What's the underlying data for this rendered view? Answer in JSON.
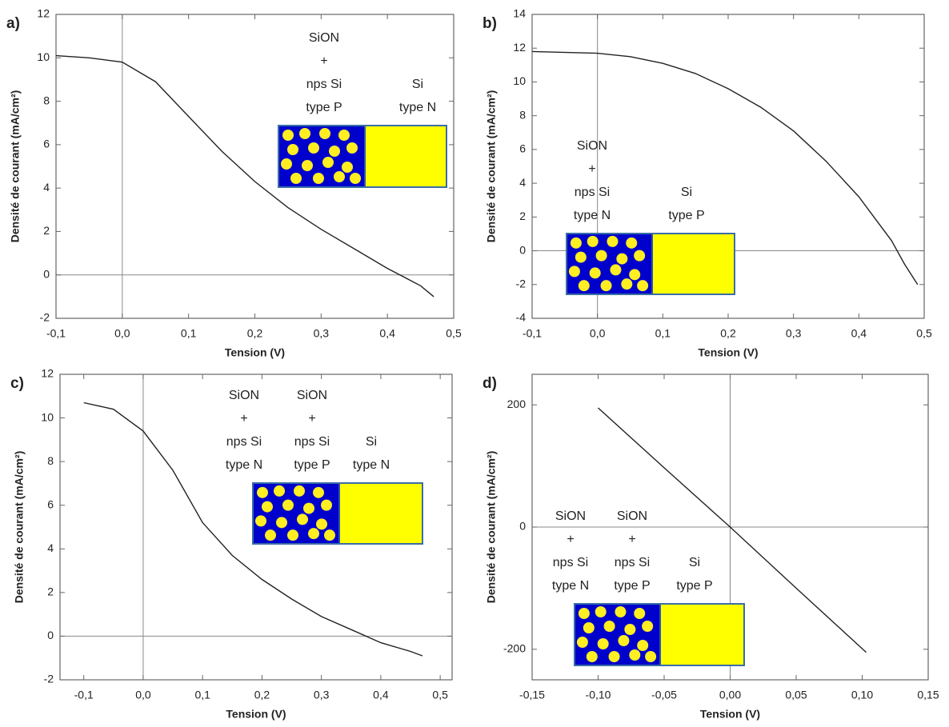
{
  "chart_data": [
    {
      "type": "line",
      "panel": "a)",
      "xlabel": "Tension (V)",
      "ylabel": "Densité de courant (mA/cm²)",
      "x": [
        -0.1,
        -0.05,
        0,
        0.05,
        0.1,
        0.15,
        0.2,
        0.25,
        0.3,
        0.35,
        0.4,
        0.45,
        0.47
      ],
      "values": [
        10.1,
        10.0,
        9.8,
        8.9,
        7.3,
        5.7,
        4.3,
        3.1,
        2.1,
        1.2,
        0.3,
        -0.5,
        -1.0
      ],
      "color": "#222222",
      "xlim": [
        -0.1,
        0.5
      ],
      "ylim": [
        -2,
        12
      ],
      "xticks": [
        {
          "value": -0.1,
          "label": "-0,1"
        },
        {
          "value": 0,
          "label": "0,0"
        },
        {
          "value": 0.1,
          "label": "0,1"
        },
        {
          "value": 0.2,
          "label": "0,2"
        },
        {
          "value": 0.3,
          "label": "0,3"
        },
        {
          "value": 0.4,
          "label": "0,4"
        },
        {
          "value": 0.5,
          "label": "0,5"
        }
      ],
      "yticks": [
        -2,
        0,
        2,
        4,
        6,
        8,
        10,
        12
      ],
      "annotations": [
        {
          "lines": [
            "SiON",
            "+",
            "nps Si",
            "type P"
          ]
        },
        {
          "lines": [
            "Si",
            "type N"
          ]
        }
      ]
    },
    {
      "type": "line",
      "panel": "b)",
      "xlabel": "Tension (V)",
      "ylabel": "Densité de courant (mA/cm²)",
      "x": [
        -0.1,
        0,
        0.05,
        0.1,
        0.15,
        0.2,
        0.25,
        0.3,
        0.35,
        0.4,
        0.45,
        0.47,
        0.49
      ],
      "values": [
        11.8,
        11.7,
        11.5,
        11.1,
        10.5,
        9.6,
        8.5,
        7.1,
        5.3,
        3.2,
        0.6,
        -0.8,
        -2.0
      ],
      "color": "#222222",
      "xlim": [
        -0.1,
        0.5
      ],
      "ylim": [
        -4,
        14
      ],
      "xticks": [
        {
          "value": -0.1,
          "label": "-0,1"
        },
        {
          "value": 0,
          "label": "0,0"
        },
        {
          "value": 0.1,
          "label": "0,1"
        },
        {
          "value": 0.2,
          "label": "0,2"
        },
        {
          "value": 0.3,
          "label": "0,3"
        },
        {
          "value": 0.4,
          "label": "0,4"
        },
        {
          "value": 0.5,
          "label": "0,5"
        }
      ],
      "yticks": [
        -4,
        -2,
        0,
        2,
        4,
        6,
        8,
        10,
        12,
        14
      ],
      "annotations": [
        {
          "lines": [
            "SiON",
            "+",
            "nps Si",
            "type N"
          ]
        },
        {
          "lines": [
            "Si",
            "type P"
          ]
        }
      ]
    },
    {
      "type": "line",
      "panel": "c)",
      "xlabel": "Tension (V)",
      "ylabel": "Densité de courant (mA/cm²)",
      "x": [
        -0.1,
        -0.05,
        0,
        0.05,
        0.1,
        0.15,
        0.2,
        0.25,
        0.3,
        0.35,
        0.4,
        0.45,
        0.47
      ],
      "values": [
        10.7,
        10.4,
        9.4,
        7.6,
        5.2,
        3.7,
        2.6,
        1.7,
        0.9,
        0.3,
        -0.3,
        -0.7,
        -0.9
      ],
      "color": "#222222",
      "xlim": [
        -0.14,
        0.52
      ],
      "ylim": [
        -2,
        12
      ],
      "xticks": [
        {
          "value": -0.1,
          "label": "-0,1"
        },
        {
          "value": 0,
          "label": "0,0"
        },
        {
          "value": 0.1,
          "label": "0,1"
        },
        {
          "value": 0.2,
          "label": "0,2"
        },
        {
          "value": 0.3,
          "label": "0,3"
        },
        {
          "value": 0.4,
          "label": "0,4"
        },
        {
          "value": 0.5,
          "label": "0,5"
        }
      ],
      "yticks": [
        -2,
        0,
        2,
        4,
        6,
        8,
        10,
        12
      ],
      "annotations": [
        {
          "lines": [
            "SiON",
            "+",
            "nps Si",
            "type N"
          ]
        },
        {
          "lines": [
            "SiON",
            "+",
            "nps Si",
            "type P"
          ]
        },
        {
          "lines": [
            "Si",
            "type N"
          ]
        }
      ]
    },
    {
      "type": "line",
      "panel": "d)",
      "xlabel": "Tension (V)",
      "ylabel": "Densité de courant (mA/cm²)",
      "x": [
        -0.1,
        -0.05,
        0,
        0.05,
        0.103
      ],
      "values": [
        195,
        97,
        0,
        -100,
        -205
      ],
      "color": "#222222",
      "xlim": [
        -0.15,
        0.15
      ],
      "ylim": [
        -250,
        250
      ],
      "xticks": [
        {
          "value": -0.15,
          "label": "-0,15"
        },
        {
          "value": -0.1,
          "label": "-0,10"
        },
        {
          "value": -0.05,
          "label": "-0,05"
        },
        {
          "value": 0,
          "label": "0,00"
        },
        {
          "value": 0.05,
          "label": "0,05"
        },
        {
          "value": 0.1,
          "label": "0,10"
        },
        {
          "value": 0.15,
          "label": "0,15"
        }
      ],
      "yticks": [
        -200,
        0,
        200
      ],
      "annotations": [
        {
          "lines": [
            "SiON",
            "+",
            "nps Si",
            "type N"
          ]
        },
        {
          "lines": [
            "SiON",
            "+",
            "nps Si",
            "type P"
          ]
        },
        {
          "lines": [
            "Si",
            "type P"
          ]
        }
      ]
    }
  ]
}
